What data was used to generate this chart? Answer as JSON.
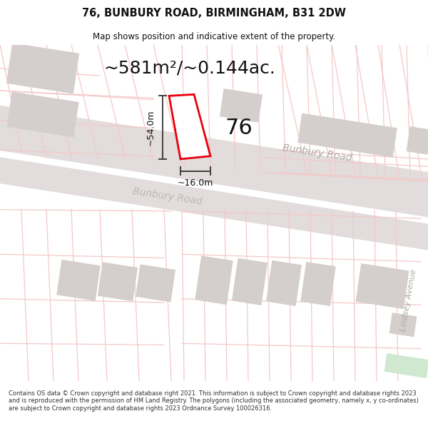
{
  "title_line1": "76, BUNBURY ROAD, BIRMINGHAM, B31 2DW",
  "title_line2": "Map shows position and indicative extent of the property.",
  "area_text": "~581m²/~0.144ac.",
  "label_76": "76",
  "dim_height": "~54.0m",
  "dim_width": "~16.0m",
  "road_label_upper": "Bunbury Road",
  "road_label_lower": "Bunbury Road",
  "road_label_side": "Lindsey Avenue",
  "footer_text": "Contains OS data © Crown copyright and database right 2021. This information is subject to Crown copyright and database rights 2023 and is reproduced with the permission of HM Land Registry. The polygons (including the associated geometry, namely x, y co-ordinates) are subject to Crown copyright and database rights 2023 Ordnance Survey 100026316.",
  "bg_color": "#ffffff",
  "map_bg": "#f8f4f4",
  "road_fill": "#e2dcdc",
  "grid_line_color": "#f5c8c8",
  "block_color": "#d4cecc",
  "highlight_color": "#e8000a",
  "highlight_fill": "#ffffff",
  "dim_line_color": "#404040",
  "text_color": "#111111",
  "road_text_color": "#b0a8a8",
  "footer_color": "#333333",
  "green_patch": "#d0e8d0"
}
